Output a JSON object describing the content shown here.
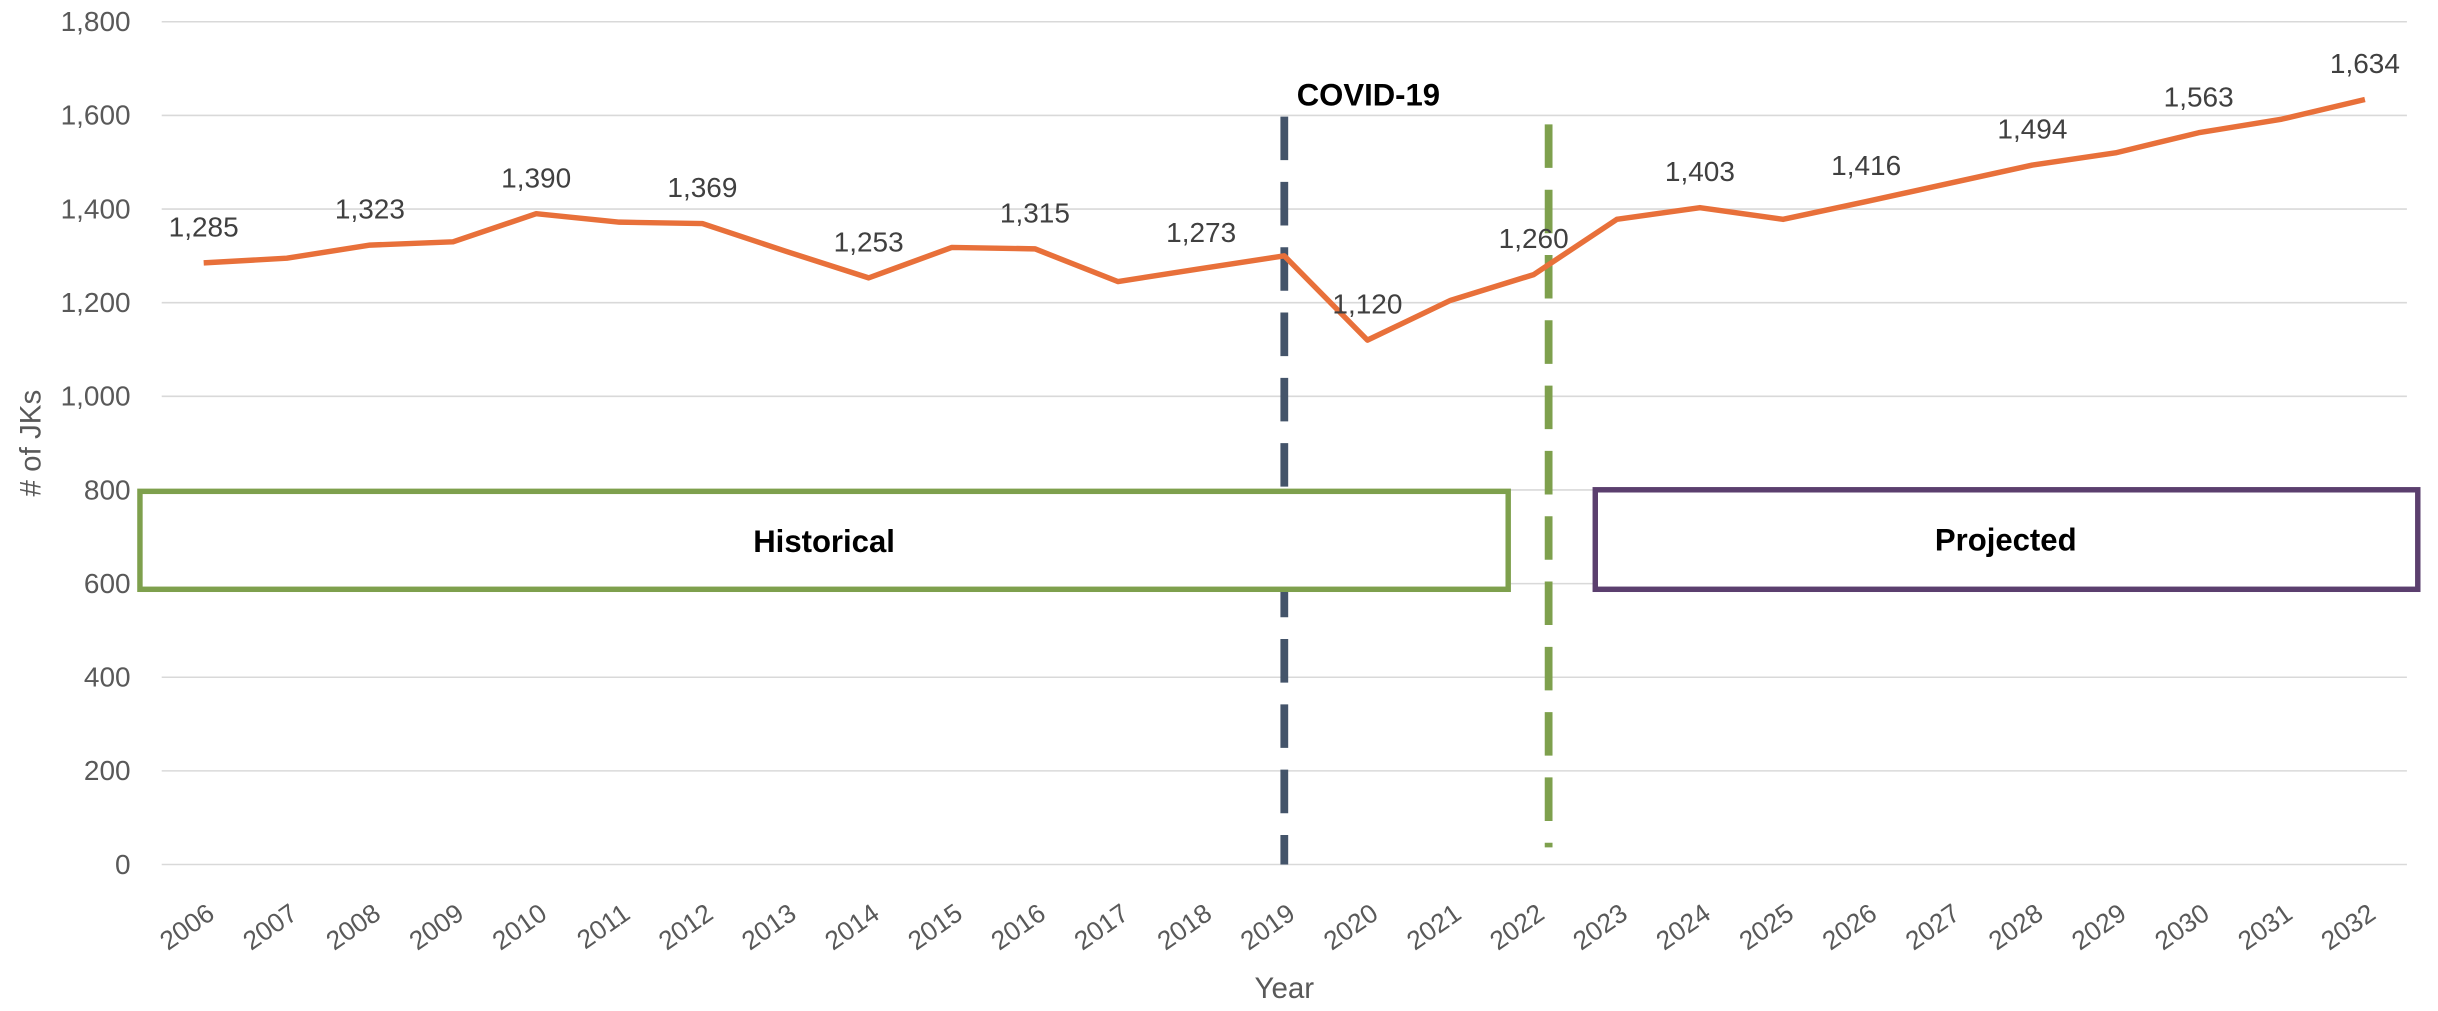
{
  "chart_data": {
    "type": "line",
    "x_label": "Year",
    "y_label": "# of JKs",
    "categories": [
      "2006",
      "2007",
      "2008",
      "2009",
      "2010",
      "2011",
      "2012",
      "2013",
      "2014",
      "2015",
      "2016",
      "2017",
      "2018",
      "2019",
      "2020",
      "2021",
      "2022",
      "2023",
      "2024",
      "2025",
      "2026",
      "2027",
      "2028",
      "2029",
      "2030",
      "2031",
      "2032"
    ],
    "series": [
      {
        "name": "# of JKs",
        "color": "#e8703a",
        "values": [
          1285,
          1295,
          1323,
          1330,
          1390,
          1372,
          1369,
          1310,
          1253,
          1318,
          1315,
          1245,
          1273,
          1300,
          1120,
          1205,
          1260,
          1378,
          1403,
          1378,
          1416,
          1455,
          1494,
          1520,
          1563,
          1592,
          1634
        ],
        "value_labels": [
          "1,285",
          null,
          "1,323",
          null,
          "1,390",
          null,
          "1,369",
          null,
          "1,253",
          null,
          "1,315",
          null,
          "1,273",
          null,
          "1,120",
          null,
          "1,260",
          null,
          "1,403",
          null,
          "1,416",
          null,
          "1,494",
          null,
          "1,563",
          null,
          "1,634"
        ]
      }
    ],
    "ylim": [
      0,
      1800
    ],
    "yticks": [
      0,
      200,
      400,
      600,
      800,
      {
        "value": 1000,
        "label": "1,000"
      },
      {
        "value": 1200,
        "label": "1,200"
      },
      {
        "value": 1400,
        "label": "1,400"
      },
      {
        "value": 1600,
        "label": "1,600"
      },
      {
        "value": 1800,
        "label": "1,800"
      }
    ],
    "grid": true,
    "annotations": {
      "covid": {
        "label": "COVID-19",
        "at": "2019",
        "color": "#44546a"
      },
      "split_color": "#7ea04d",
      "historical": {
        "label": "Historical",
        "color": "#7ea04d"
      },
      "projected": {
        "label": "Projected",
        "color": "#5b3f6e"
      }
    }
  }
}
